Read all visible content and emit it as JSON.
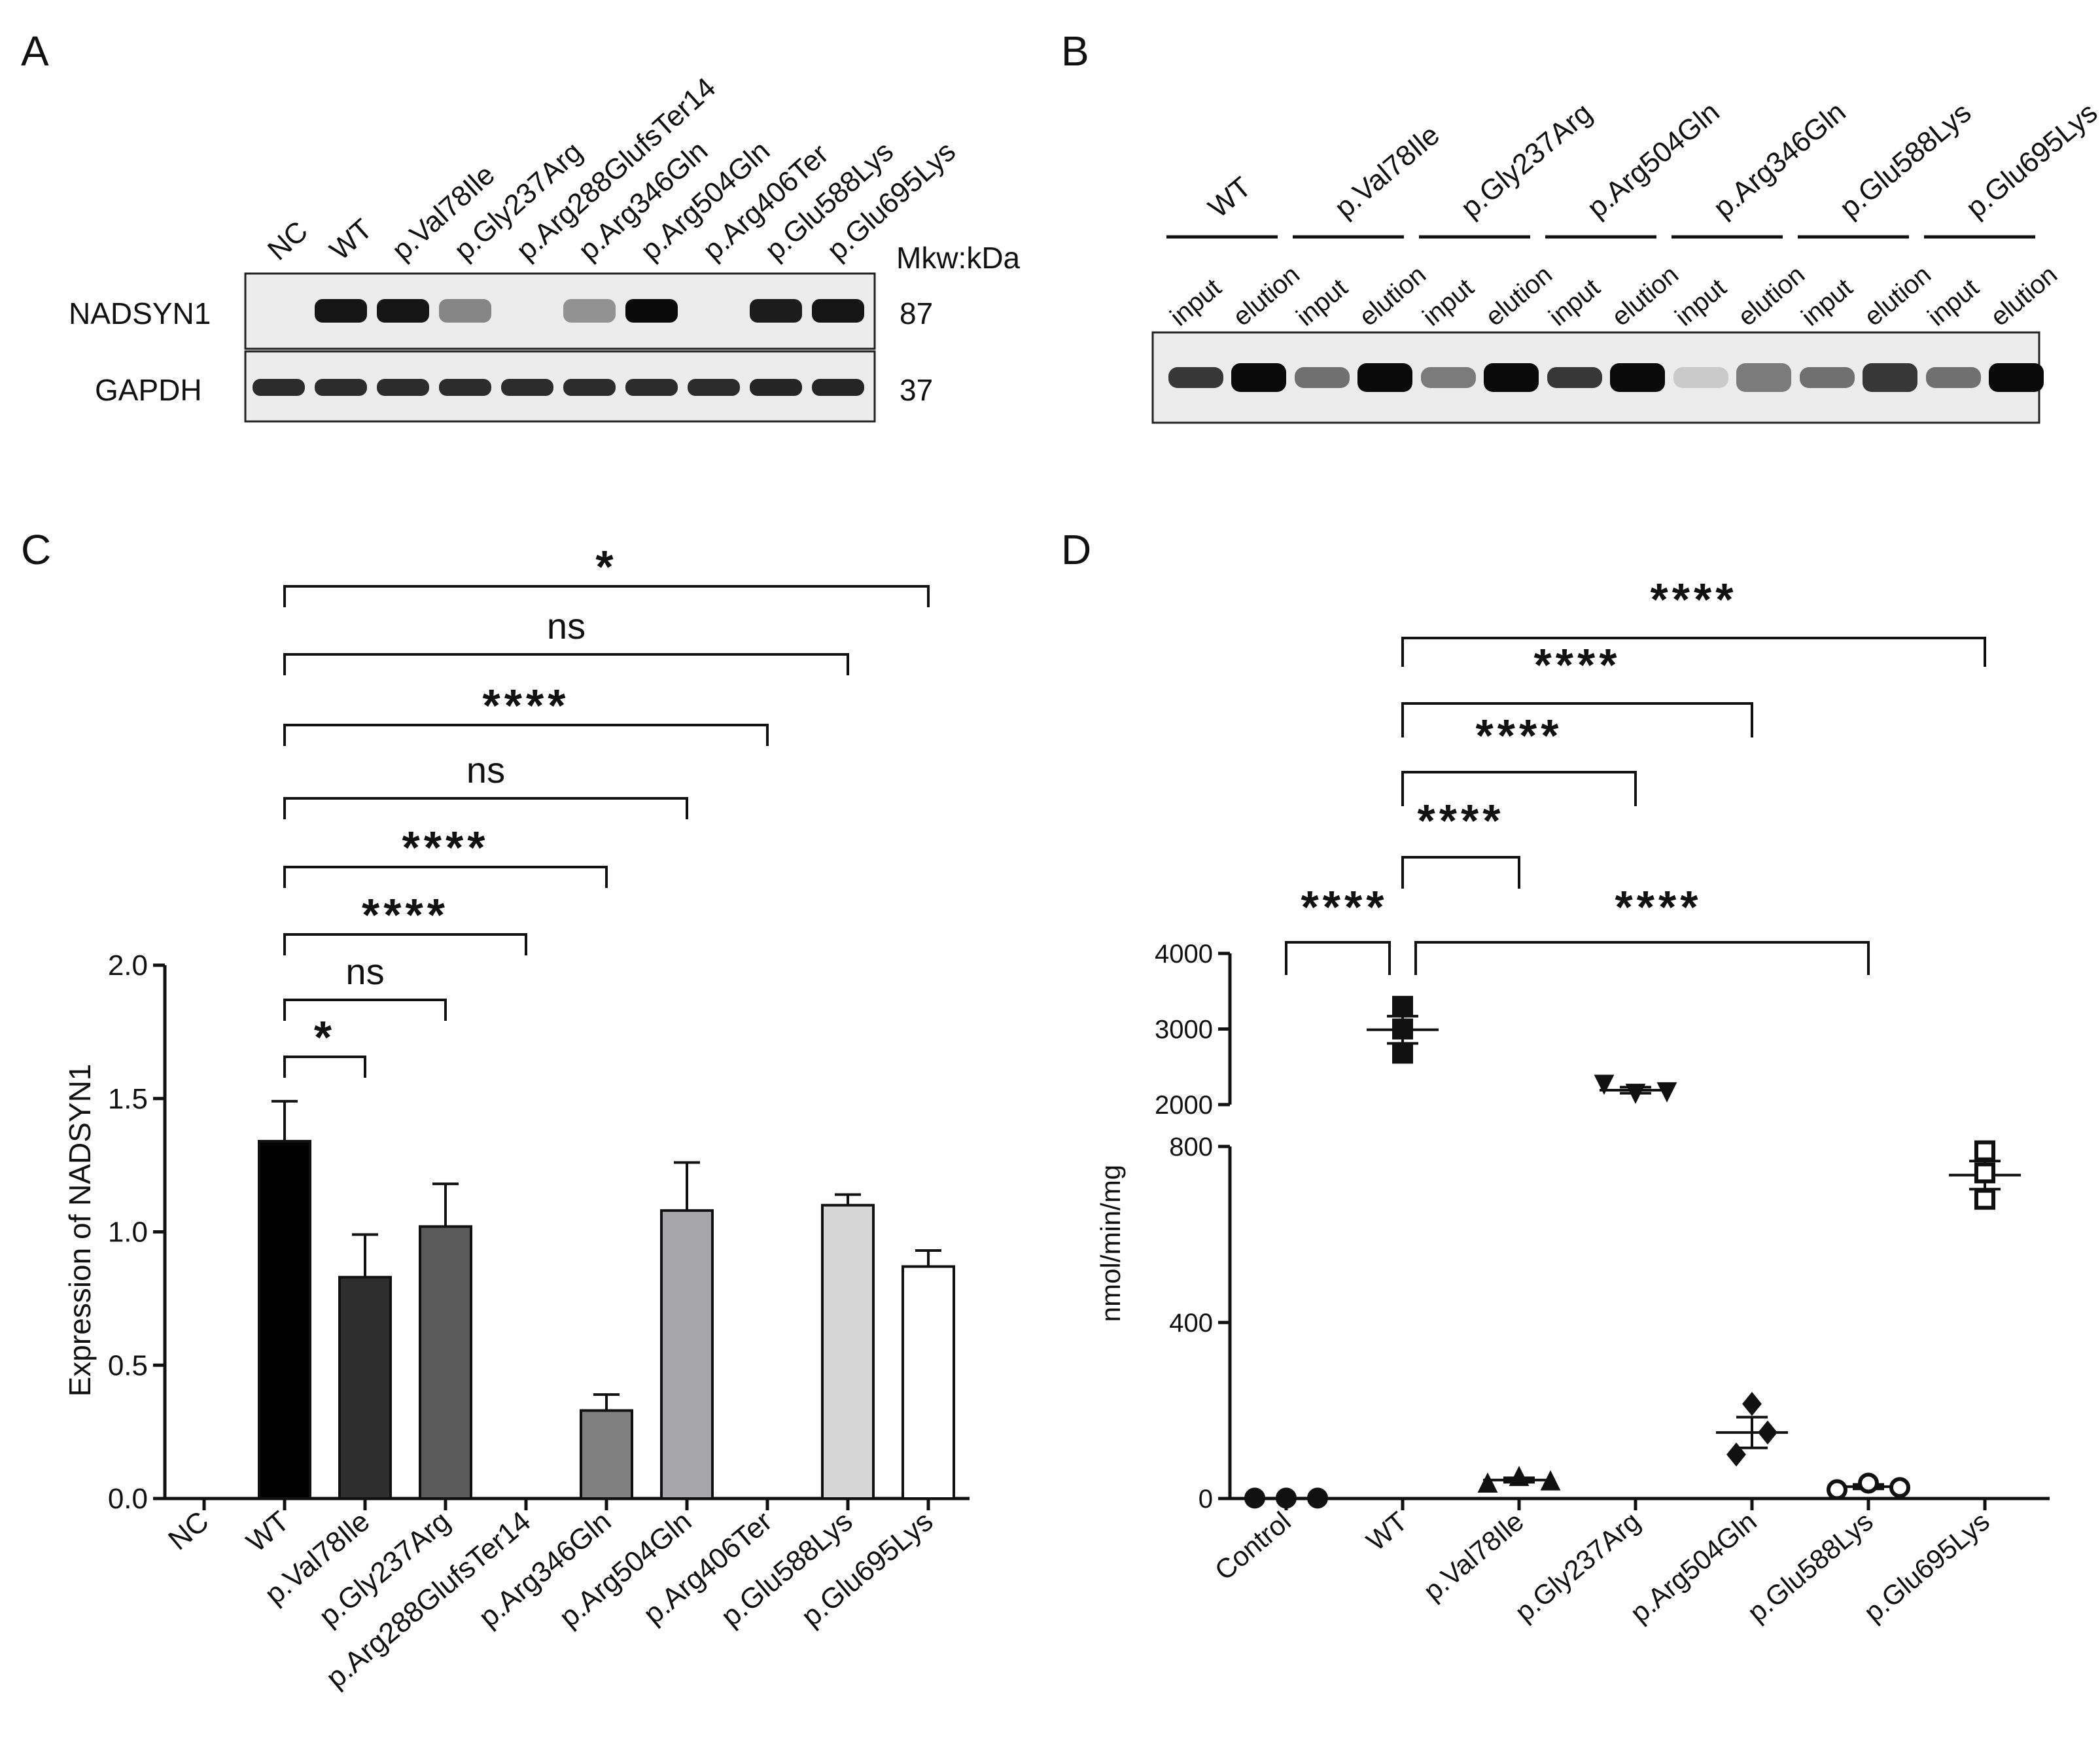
{
  "panels": {
    "A": {
      "letter": "A",
      "lanes": [
        "NC",
        "WT",
        "p.Val78Ile",
        "p.Gly237Arg",
        "p.Arg288GlufsTer14",
        "p.Arg346Gln",
        "p.Arg504Gln",
        "p.Arg406Ter",
        "p.Glu588Lys",
        "p.Glu695Lys"
      ],
      "mw_header": "Mkw:kDa",
      "rows": [
        {
          "label": "NADSYN1",
          "mw": "87",
          "band_intensity": [
            0,
            0.95,
            0.95,
            0.45,
            0,
            0.4,
            1.0,
            0,
            0.92,
            0.95
          ]
        },
        {
          "label": "GAPDH",
          "mw": "37",
          "band_intensity": [
            0.85,
            0.85,
            0.85,
            0.85,
            0.85,
            0.85,
            0.85,
            0.85,
            0.88,
            0.88
          ]
        }
      ]
    },
    "B": {
      "letter": "B",
      "groups": [
        "WT",
        "p.Val78Ile",
        "p.Gly237Arg",
        "p.Arg504Gln",
        "p.Arg346Gln",
        "p.Glu588Lys",
        "p.Glu695Lys"
      ],
      "lane_labels": [
        "input",
        "elution"
      ],
      "band_intensity": [
        [
          0.8,
          1.0
        ],
        [
          0.55,
          1.0
        ],
        [
          0.5,
          1.0
        ],
        [
          0.8,
          1.0
        ],
        [
          0.15,
          0.5
        ],
        [
          0.55,
          0.8
        ],
        [
          0.55,
          1.0
        ]
      ]
    },
    "C": {
      "letter": "C"
    },
    "D": {
      "letter": "D"
    }
  },
  "chart_data": [
    {
      "panel": "C",
      "type": "bar",
      "categories": [
        "NC",
        "WT",
        "p.Val78Ile",
        "p.Gly237Arg",
        "p.Arg288GlufsTer14",
        "p.Arg346Gln",
        "p.Arg504Gln",
        "p.Arg406Ter",
        "p.Glu588Lys",
        "p.Glu695Lys"
      ],
      "values": [
        0,
        1.34,
        0.83,
        1.02,
        0,
        0.33,
        1.08,
        0,
        1.1,
        0.87
      ],
      "errors": [
        0,
        0.15,
        0.16,
        0.16,
        0,
        0.06,
        0.18,
        0,
        0.04,
        0.06
      ],
      "bar_colors": [
        "#000000",
        "#000000",
        "#2e2e2e",
        "#5a5a5a",
        "#000000",
        "#808080",
        "#a6a6ab",
        "#000000",
        "#d6d6d6",
        "#ffffff"
      ],
      "ylabel": "Expression of NADSYN1",
      "ylim": [
        0,
        2.0
      ],
      "yticks": [
        "0.0",
        "0.5",
        "1.0",
        "1.5",
        "2.0"
      ],
      "comparisons": [
        {
          "from": "WT",
          "to": "p.Val78Ile",
          "label": "*"
        },
        {
          "from": "WT",
          "to": "p.Gly237Arg",
          "label": "ns"
        },
        {
          "from": "WT",
          "to": "p.Arg288GlufsTer14",
          "label": "****"
        },
        {
          "from": "WT",
          "to": "p.Arg346Gln",
          "label": "****"
        },
        {
          "from": "WT",
          "to": "p.Arg504Gln",
          "label": "ns"
        },
        {
          "from": "WT",
          "to": "p.Arg406Ter",
          "label": "****"
        },
        {
          "from": "WT",
          "to": "p.Glu588Lys",
          "label": "ns"
        },
        {
          "from": "WT",
          "to": "p.Glu695Lys",
          "label": "*"
        }
      ]
    },
    {
      "panel": "D",
      "type": "scatter",
      "categories": [
        "Control",
        "WT",
        "p.Val78Ile",
        "p.Gly237Arg",
        "p.Arg504Gln",
        "p.Glu588Lys",
        "p.Glu695Lys"
      ],
      "points": [
        [
          1,
          1,
          1
        ],
        [
          3300,
          3000,
          2680
        ],
        [
          35,
          50,
          40
        ],
        [
          2270,
          2150,
          2170
        ],
        [
          215,
          100,
          150
        ],
        [
          20,
          35,
          25
        ],
        [
          790,
          740,
          680
        ]
      ],
      "means": [
        1,
        2990,
        42,
        2190,
        150,
        27,
        735
      ],
      "sem": [
        0,
        180,
        5,
        40,
        35,
        5,
        32
      ],
      "markers": [
        "circle-filled",
        "square-filled",
        "triangle-up-filled",
        "triangle-down-filled",
        "diamond-filled",
        "circle-open",
        "square-open"
      ],
      "ylabel": "nmol/min/mg",
      "y_segments": [
        {
          "range": [
            0,
            800
          ],
          "ticks": [
            "0",
            "400",
            "800"
          ]
        },
        {
          "range": [
            2000,
            4000
          ],
          "ticks": [
            "2000",
            "3000",
            "4000"
          ]
        }
      ],
      "comparisons": [
        {
          "from": "Control",
          "to": "WT",
          "label": "****"
        },
        {
          "from": "WT",
          "to": "p.Val78Ile",
          "label": "****"
        },
        {
          "from": "WT",
          "to": "p.Gly237Arg",
          "label": "****"
        },
        {
          "from": "WT",
          "to": "p.Arg504Gln",
          "label": "****"
        },
        {
          "from": "WT",
          "to": "p.Glu588Lys",
          "label": "****"
        },
        {
          "from": "WT",
          "to": "p.Glu695Lys",
          "label": "****"
        }
      ]
    }
  ]
}
